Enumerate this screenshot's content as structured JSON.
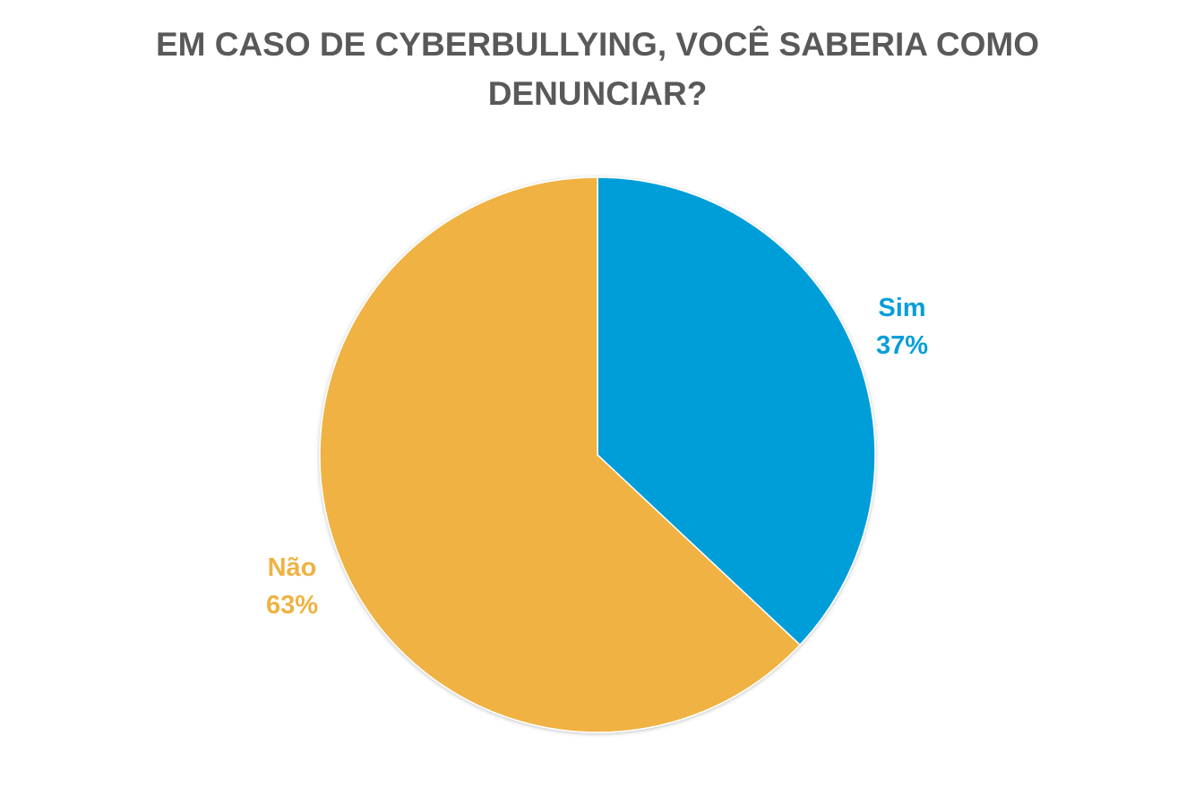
{
  "chart_data": {
    "type": "pie",
    "title_lines": [
      "EM CASO DE CYBERBULLYING, VOCÊ SABERIA COMO",
      "DENUNCIAR?"
    ],
    "slices": [
      {
        "label": "Sim",
        "value": 37,
        "value_label": "37%",
        "color": "#069ED9"
      },
      {
        "label": "Não",
        "value": 63,
        "value_label": "63%",
        "color": "#F0B243"
      }
    ],
    "legend": "none"
  }
}
